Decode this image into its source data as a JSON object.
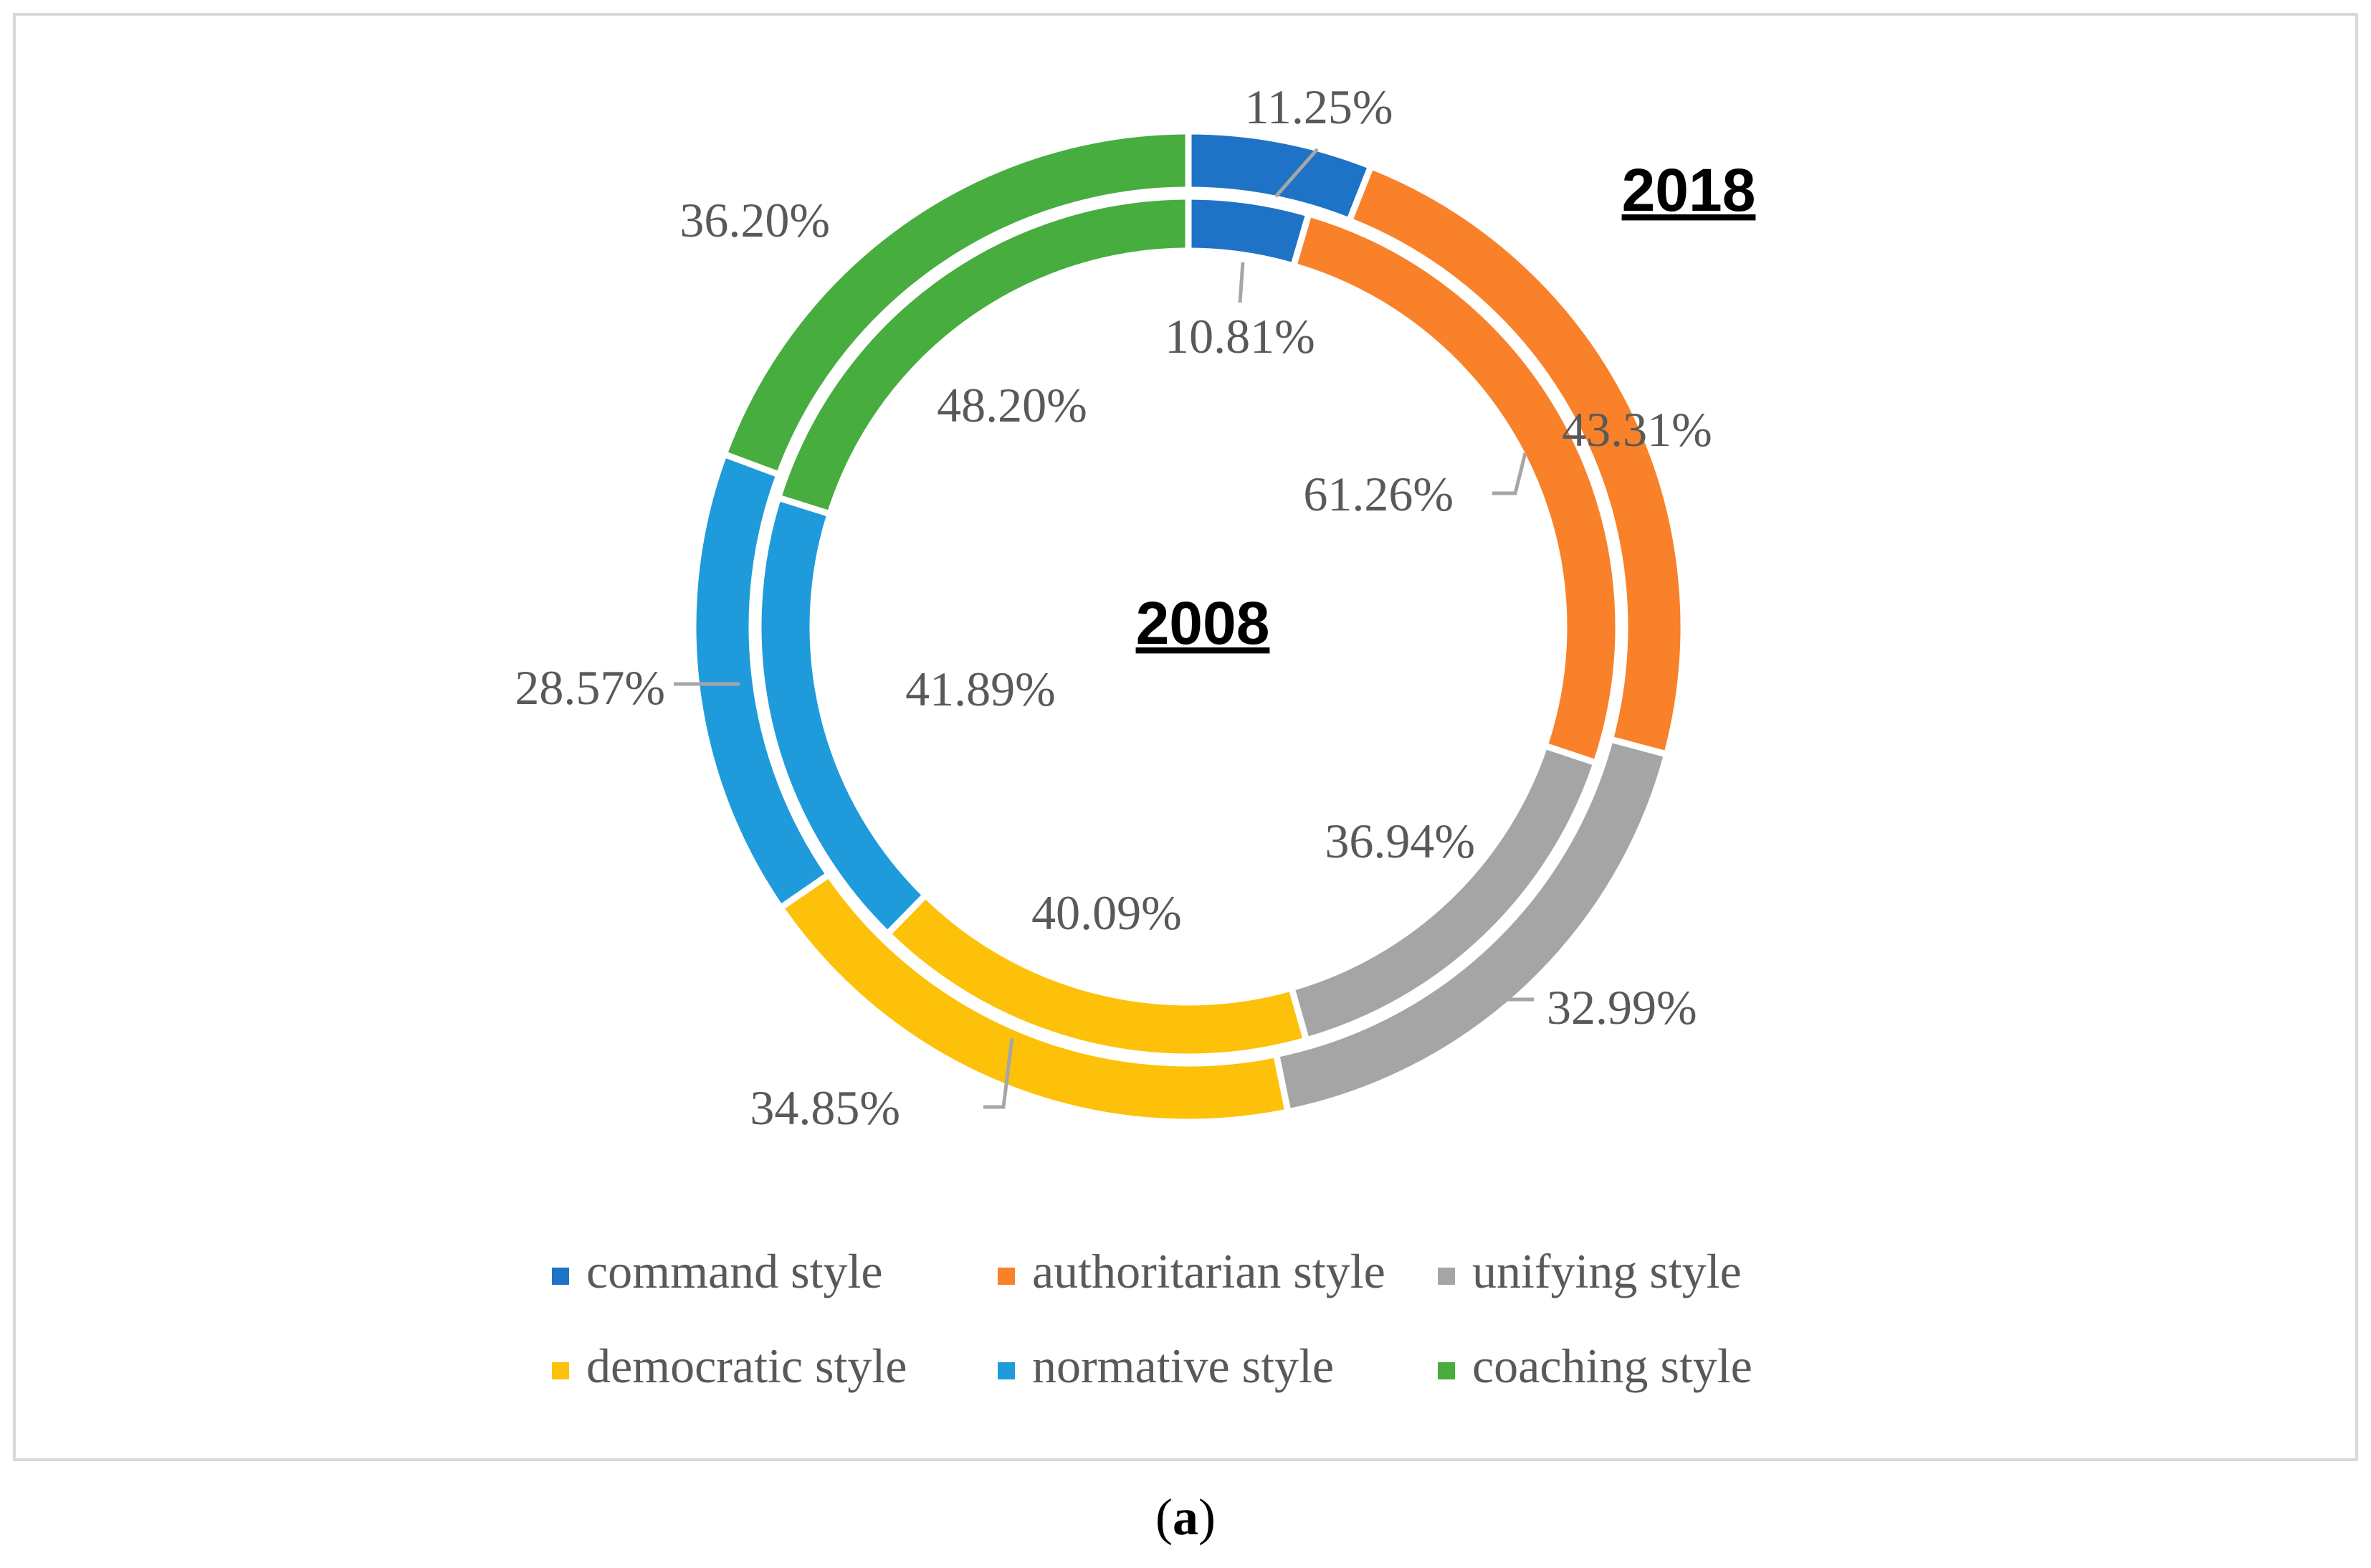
{
  "chart_data": {
    "type": "doughnut",
    "categories": [
      "command style",
      "authoritarian style",
      "unifying style",
      "democratic style",
      "normative style",
      "coaching style"
    ],
    "colors": [
      "#1f73c6",
      "#f8812a",
      "#a5a5a5",
      "#fdc10a",
      "#1f9bdc",
      "#46ad3e"
    ],
    "series": [
      {
        "name": "2018",
        "ring": "outer",
        "labels": [
          "11.25%",
          "43.31%",
          "32.99%",
          "34.85%",
          "28.57%",
          "36.20%"
        ],
        "values": [
          11.25,
          43.31,
          32.99,
          34.85,
          28.57,
          36.2
        ]
      },
      {
        "name": "2008",
        "ring": "inner",
        "labels": [
          "10.81%",
          "61.26%",
          "36.94%",
          "40.09%",
          "41.89%",
          "48.20%"
        ],
        "values": [
          10.81,
          61.26,
          36.94,
          40.09,
          41.89,
          48.2
        ]
      }
    ],
    "ring_titles": {
      "outer": "2018",
      "inner": "2008"
    },
    "legend": [
      "command style",
      "authoritarian style",
      "unifying style",
      "democratic style",
      "normative style",
      "coaching style"
    ],
    "legend_position": "bottom"
  },
  "caption": {
    "open": "(",
    "letter": "a",
    "close": ")"
  }
}
